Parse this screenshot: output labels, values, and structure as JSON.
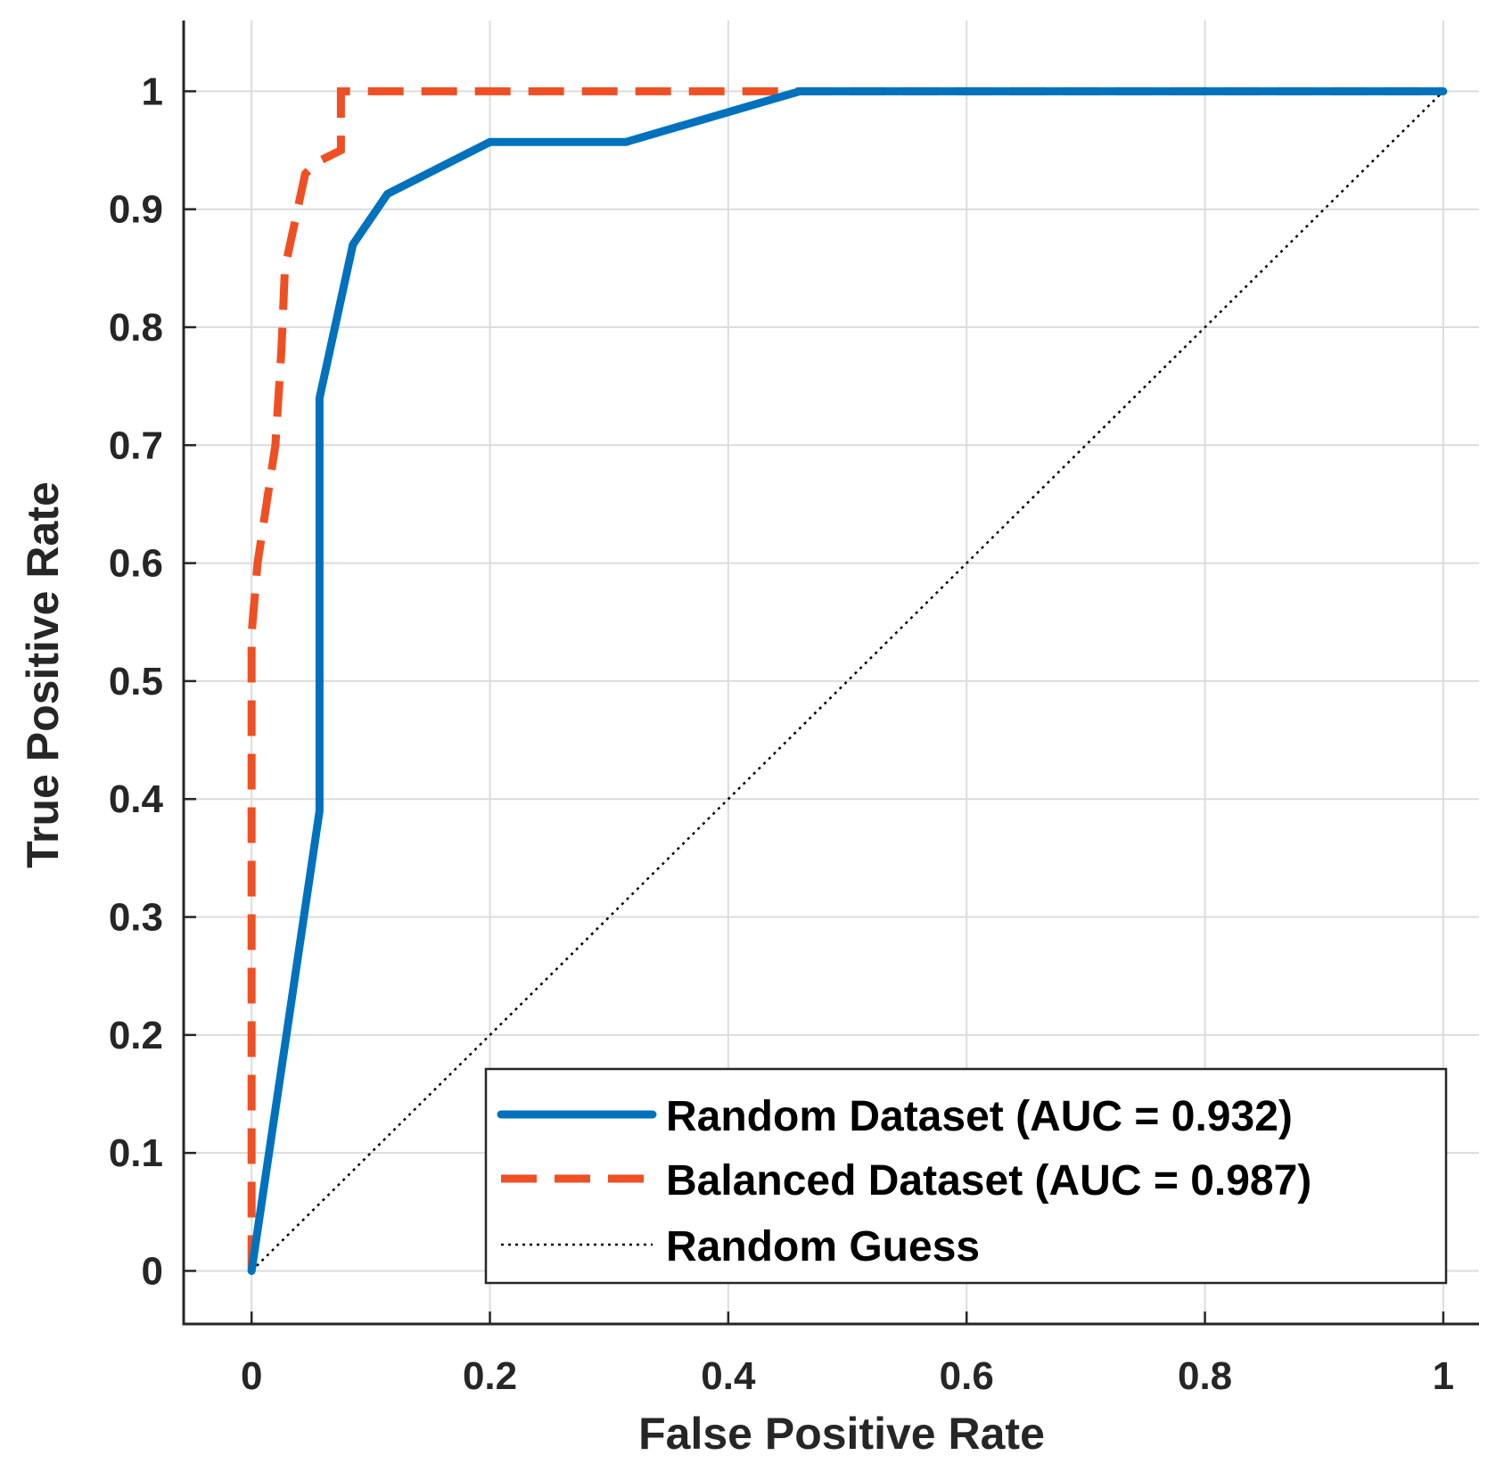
{
  "chart_data": {
    "type": "line",
    "title": "",
    "xlabel": "False Positive Rate",
    "ylabel": "True Positive Rate",
    "xlim": [
      -0.057,
      1.03
    ],
    "ylim": [
      -0.045,
      1.06
    ],
    "xticks": [
      0,
      0.2,
      0.4,
      0.6,
      0.8,
      1
    ],
    "xtick_labels": [
      "0",
      "0.2",
      "0.4",
      "0.6",
      "0.8",
      "1"
    ],
    "yticks": [
      0,
      0.1,
      0.2,
      0.3,
      0.4,
      0.5,
      0.6,
      0.7,
      0.8,
      0.9,
      1
    ],
    "ytick_labels": [
      "0",
      "0.1",
      "0.2",
      "0.3",
      "0.4",
      "0.5",
      "0.6",
      "0.7",
      "0.8",
      "0.9",
      "1"
    ],
    "grid": true,
    "legend_position": "bottom-right",
    "series": [
      {
        "name": "Random Dataset (AUC = 0.932)",
        "color": "#0072bd",
        "style": "solid",
        "x": [
          0,
          0.057,
          0.057,
          0.085,
          0.114,
          0.2,
          0.314,
          0.46,
          1
        ],
        "y": [
          0,
          0.39,
          0.74,
          0.87,
          0.913,
          0.957,
          0.957,
          1,
          1
        ]
      },
      {
        "name": "Balanced Dataset (AUC = 0.987)",
        "color": "#ef5023",
        "style": "dashed",
        "x": [
          0,
          0,
          0.005,
          0.02,
          0.025,
          0.028,
          0.045,
          0.055,
          0.075,
          0.075,
          1
        ],
        "y": [
          0,
          0.54,
          0.6,
          0.7,
          0.78,
          0.85,
          0.93,
          0.94,
          0.95,
          1,
          1
        ]
      },
      {
        "name": "Random Guess",
        "color": "#000000",
        "style": "dotted",
        "x": [
          0,
          1
        ],
        "y": [
          0,
          1
        ]
      }
    ]
  }
}
